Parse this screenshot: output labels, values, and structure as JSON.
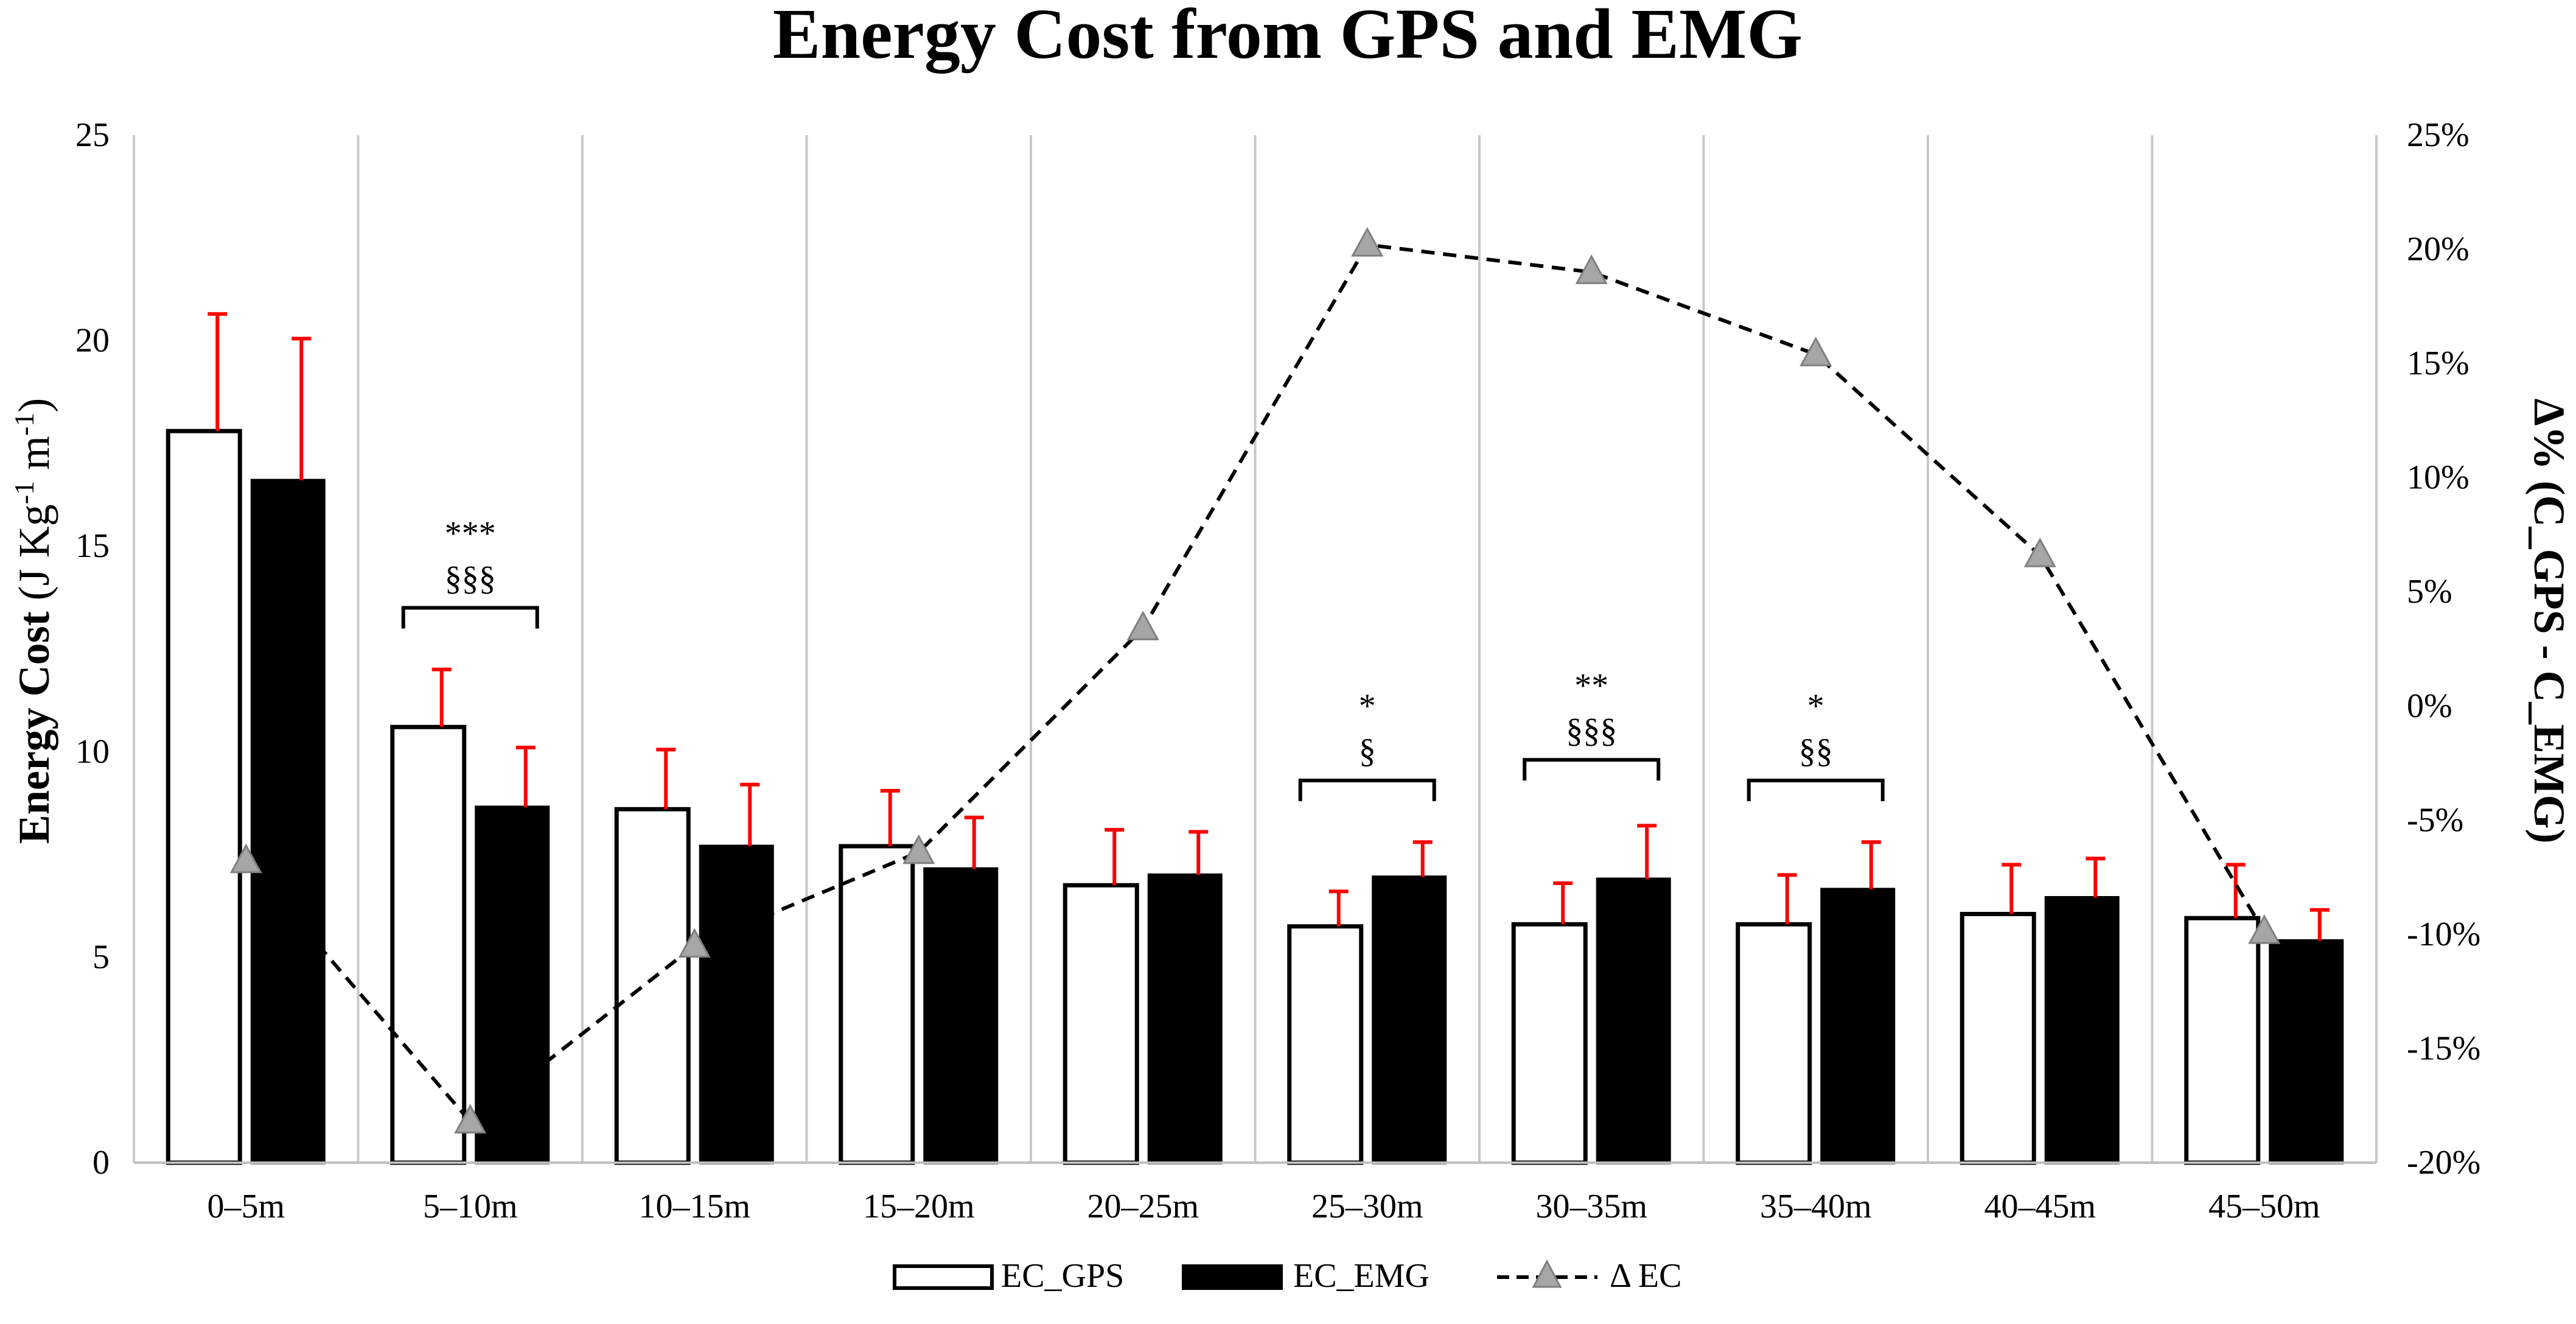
{
  "chart_data": {
    "type": "bar",
    "title": "Energy Cost from GPS and EMG",
    "categories": [
      "0–5m",
      "5–10m",
      "10–15m",
      "15–20m",
      "20–25m",
      "25–30m",
      "30–35m",
      "35–40m",
      "40–45m",
      "45–50m"
    ],
    "ylabel": {
      "bold": "Energy Cost",
      "rest_pre": " (J Kg",
      "sup1": "-1",
      "mid": " m",
      "sup2": "-1",
      "post": ")"
    },
    "y2label": "Δ% (C_GPS - C_EMG)",
    "ylim": [
      0,
      25
    ],
    "yticks": [
      0,
      5,
      10,
      15,
      20,
      25
    ],
    "ytick_labels": [
      "0",
      "5",
      "10",
      "15",
      "20",
      "25"
    ],
    "y2lim": [
      -20,
      25
    ],
    "y2ticks": [
      -20,
      -15,
      -10,
      -5,
      0,
      5,
      10,
      15,
      20,
      25
    ],
    "y2tick_labels": [
      "-20%",
      "-15%",
      "-10%",
      "-5%",
      "0%",
      "5%",
      "10%",
      "15%",
      "20%",
      "25%"
    ],
    "series": [
      {
        "name": "EC_GPS",
        "kind": "bar",
        "fill": "#ffffff",
        "stroke": "#000000",
        "values": [
          17.8,
          10.6,
          8.6,
          7.7,
          6.75,
          5.75,
          5.8,
          5.8,
          6.05,
          5.95
        ],
        "errors": [
          2.85,
          1.4,
          1.45,
          1.35,
          1.35,
          0.85,
          1.0,
          1.2,
          1.2,
          1.3
        ]
      },
      {
        "name": "EC_EMG",
        "kind": "bar",
        "fill": "#000000",
        "stroke": "#000000",
        "values": [
          16.6,
          8.65,
          7.7,
          7.15,
          7.0,
          6.95,
          6.9,
          6.65,
          6.45,
          5.4
        ],
        "errors": [
          3.45,
          1.45,
          1.5,
          1.25,
          1.05,
          0.85,
          1.3,
          1.15,
          0.95,
          0.75
        ]
      },
      {
        "name": "Δ EC",
        "kind": "line",
        "axis": "secondary",
        "dash": true,
        "marker": "triangle",
        "values": [
          -6.8,
          -18.2,
          -10.5,
          -6.4,
          3.4,
          20.2,
          19.0,
          15.4,
          6.6,
          -9.9
        ]
      }
    ],
    "significance": [
      {
        "category_index": 1,
        "stars": "***",
        "sections": "§§§",
        "y": 13.5
      },
      {
        "category_index": 5,
        "stars": "*",
        "sections": "§",
        "y": 9.3
      },
      {
        "category_index": 6,
        "stars": "**",
        "sections": "§§§",
        "y": 9.8
      },
      {
        "category_index": 7,
        "stars": "*",
        "sections": "§§",
        "y": 9.3
      }
    ],
    "error_bar_color": "#ff0000",
    "gridlines": "vertical separators between categories",
    "legend": {
      "position": "bottom",
      "entries": [
        "EC_GPS",
        "EC_EMG",
        "Δ EC"
      ]
    }
  }
}
